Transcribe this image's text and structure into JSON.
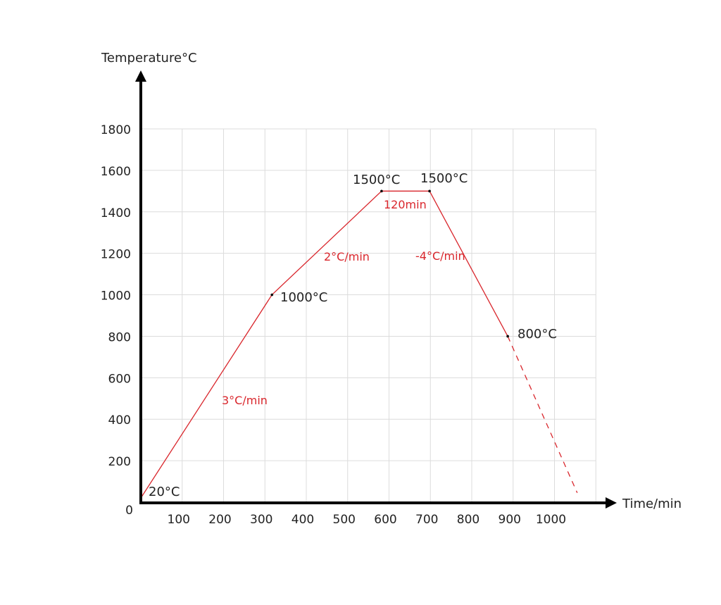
{
  "chart_data": {
    "type": "line",
    "ylabel": "Temperature°C",
    "xlabel": "Time/min",
    "xlim": [
      0,
      1100
    ],
    "ylim": [
      0,
      1800
    ],
    "x_ticks": [
      "100",
      "200",
      "300",
      "400",
      "500",
      "600",
      "700",
      "800",
      "900",
      "1000"
    ],
    "y_ticks": [
      "0",
      "200",
      "400",
      "600",
      "800",
      "1000",
      "1200",
      "1400",
      "1600",
      "1800"
    ],
    "grid": true,
    "line_color": "#d9262c",
    "series": [
      {
        "style": "solid",
        "points": [
          [
            0,
            20
          ],
          [
            317,
            1000
          ],
          [
            582,
            1500
          ],
          [
            698,
            1500
          ],
          [
            887,
            800
          ]
        ]
      },
      {
        "style": "dashed",
        "points": [
          [
            887,
            800
          ],
          [
            1055,
            45
          ]
        ]
      }
    ],
    "point_labels": [
      "20°C",
      "1000°C",
      "1500°C",
      "1500°C",
      "800°C"
    ],
    "rate_labels": [
      "3°C/min",
      "2°C/min",
      "120min",
      "-4°C/min"
    ]
  }
}
